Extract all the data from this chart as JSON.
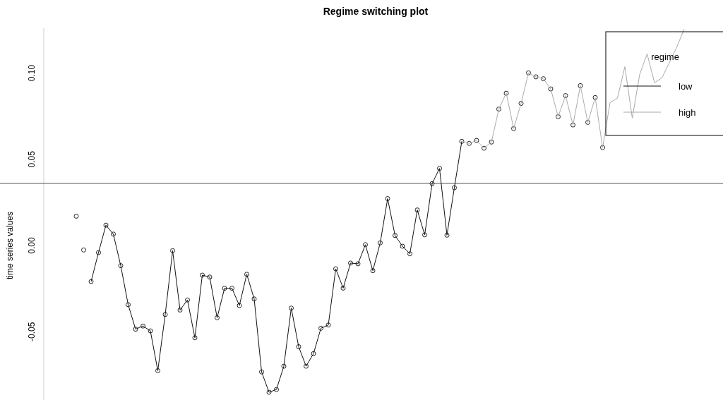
{
  "chart_data": {
    "type": "line",
    "title": "Regime switching plot",
    "ylabel": "time series values",
    "categories": [
      null,
      null,
      null,
      null,
      null,
      null,
      null,
      null,
      null,
      null,
      null,
      null,
      null,
      null,
      null,
      null,
      null,
      null,
      null,
      null,
      null,
      null,
      null,
      null,
      null,
      null,
      null,
      null,
      null,
      null,
      null,
      null,
      null,
      null,
      null,
      null,
      null,
      null,
      null,
      null,
      null,
      null,
      null,
      null,
      null,
      null,
      null,
      null,
      null,
      null,
      null,
      null,
      null,
      null,
      null,
      null,
      null,
      null,
      null,
      null,
      null,
      null,
      null,
      null,
      null,
      null,
      null,
      null,
      null,
      null,
      null,
      null,
      null,
      null,
      null,
      null,
      null,
      null,
      null,
      null,
      null,
      null,
      null
    ],
    "ylim": [
      -0.09,
      0.126
    ],
    "yticks": [
      {
        "value": -0.05,
        "label": "-0.05"
      },
      {
        "value": 0,
        "label": "0.00"
      },
      {
        "value": 0.05,
        "label": "0.05"
      },
      {
        "value": 0.1,
        "label": "0.10"
      }
    ],
    "tick_labels": "y",
    "grid": false,
    "legend": "top right",
    "legend_title": "regime",
    "ref_lines": [
      {
        "axis": "y",
        "value": 0.036,
        "color": "#555555"
      }
    ],
    "series": [
      {
        "type": "scatter",
        "marker": "circle",
        "color": "#222222",
        "values": [
          0.017,
          -0.0026,
          -0.0209,
          -0.0041,
          0.0118,
          0.0066,
          -0.0117,
          -0.0343,
          -0.0485,
          -0.0467,
          -0.0495,
          -0.0726,
          -0.04,
          -0.003,
          -0.0374,
          -0.0316,
          -0.0535,
          -0.0172,
          -0.0183,
          -0.0419,
          -0.0248,
          -0.0248,
          -0.0348,
          -0.0167,
          -0.031,
          -0.0733,
          -0.0851,
          -0.0835,
          -0.07,
          -0.0363,
          -0.0587,
          -0.07,
          -0.0627,
          -0.048,
          -0.0461,
          -0.0135,
          -0.0247,
          -0.0102,
          -0.0106,
          0.0005,
          -0.0146,
          0.0015,
          0.0272,
          0.0058,
          -0.0004,
          -0.0048,
          0.0206,
          0.0062,
          0.0359,
          0.0447,
          0.006,
          0.0335,
          0.0604,
          0.0592,
          0.0609,
          0.0564,
          0.06,
          0.0791,
          0.0883,
          0.0678,
          0.0824,
          0.1001,
          0.0978,
          0.0967,
          0.0908,
          0.0747,
          0.0869,
          0.0699,
          0.0927,
          0.0714,
          0.0858,
          0.0568,
          null,
          null,
          null,
          null,
          null,
          null,
          null,
          null,
          null,
          null,
          null
        ]
      },
      {
        "name": "low",
        "marker": "none",
        "color": "#111111",
        "values": [
          null,
          null,
          -0.0209,
          -0.0041,
          0.0118,
          0.0066,
          -0.0117,
          -0.0343,
          -0.0485,
          -0.0467,
          -0.0495,
          -0.0726,
          -0.04,
          -0.003,
          -0.0374,
          -0.0316,
          -0.0535,
          -0.0172,
          -0.0183,
          -0.0419,
          -0.0248,
          -0.0248,
          -0.0348,
          -0.0167,
          -0.031,
          -0.0733,
          -0.0851,
          -0.0835,
          -0.07,
          -0.0363,
          -0.0587,
          -0.07,
          -0.0627,
          -0.048,
          -0.0461,
          -0.0135,
          -0.0247,
          -0.0102,
          -0.0106,
          0.0005,
          -0.0146,
          0.0015,
          0.0272,
          0.0058,
          -0.0004,
          -0.0048,
          0.0206,
          0.0062,
          0.0359,
          0.0447,
          0.006,
          0.0335,
          0.0604,
          null,
          null,
          null,
          null,
          null,
          null,
          null,
          null,
          null,
          null,
          null,
          null,
          null,
          null,
          null,
          null,
          null,
          null,
          null,
          null,
          null,
          null,
          null,
          null,
          null,
          null,
          null,
          null,
          null,
          null
        ]
      },
      {
        "name": "high",
        "marker": "none",
        "color": "#aaaaaa",
        "values": [
          null,
          null,
          null,
          null,
          null,
          null,
          null,
          null,
          null,
          null,
          null,
          null,
          null,
          null,
          null,
          null,
          null,
          null,
          null,
          null,
          null,
          null,
          null,
          null,
          null,
          null,
          null,
          null,
          null,
          null,
          null,
          null,
          null,
          null,
          null,
          null,
          null,
          null,
          null,
          null,
          null,
          null,
          null,
          null,
          null,
          null,
          null,
          null,
          null,
          null,
          null,
          null,
          0.0604,
          0.0592,
          0.0609,
          0.0564,
          0.06,
          0.0791,
          0.0883,
          0.0678,
          0.0824,
          0.1001,
          0.0978,
          0.0967,
          0.0908,
          0.0747,
          0.0869,
          0.0699,
          0.0927,
          0.0714,
          0.0858,
          0.0568,
          0.0829,
          0.0854,
          0.1037,
          0.0739,
          0.0992,
          0.1111,
          0.0944,
          0.0972,
          0.106,
          0.115,
          0.1255
        ]
      }
    ]
  }
}
